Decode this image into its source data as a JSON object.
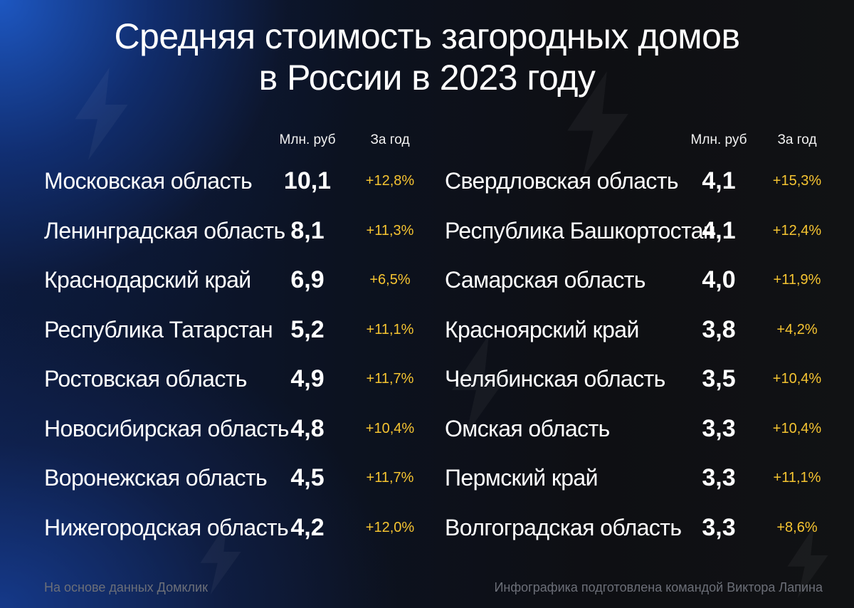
{
  "title": {
    "line1": "Средняя стоимость загородных домов",
    "line2": "в России в 2023 году"
  },
  "columns": {
    "price_header": "Млн. руб",
    "change_header": "За год"
  },
  "left_rows": [
    {
      "region": "Московская область",
      "price": "10,1",
      "change": "+12,8%"
    },
    {
      "region": "Ленинградская область",
      "price": "8,1",
      "change": "+11,3%"
    },
    {
      "region": "Краснодарский край",
      "price": "6,9",
      "change": "+6,5%"
    },
    {
      "region": "Республика Татарстан",
      "price": "5,2",
      "change": "+11,1%"
    },
    {
      "region": "Ростовская область",
      "price": "4,9",
      "change": "+11,7%"
    },
    {
      "region": "Новосибирская область",
      "price": "4,8",
      "change": "+10,4%"
    },
    {
      "region": "Воронежская область",
      "price": "4,5",
      "change": "+11,7%"
    },
    {
      "region": "Нижегородская область",
      "price": "4,2",
      "change": "+12,0%"
    }
  ],
  "right_rows": [
    {
      "region": "Свердловская область",
      "price": "4,1",
      "change": "+15,3%"
    },
    {
      "region": "Республика Башкортостан",
      "price": "4,1",
      "change": "+12,4%"
    },
    {
      "region": "Самарская область",
      "price": "4,0",
      "change": "+11,9%"
    },
    {
      "region": "Красноярский край",
      "price": "3,8",
      "change": "+4,2%"
    },
    {
      "region": "Челябинская область",
      "price": "3,5",
      "change": "+10,4%"
    },
    {
      "region": "Омская область",
      "price": "3,3",
      "change": "+10,4%"
    },
    {
      "region": "Пермский край",
      "price": "3,3",
      "change": "+11,1%"
    },
    {
      "region": "Волгоградская область",
      "price": "3,3",
      "change": "+8,6%"
    }
  ],
  "footer": {
    "source": "На основе данных Домклик",
    "credit": "Инфографика подготовлена командой Виктора Лапина"
  },
  "colors": {
    "text": "#ffffff",
    "accent_change": "#f5c431",
    "footer_text": "#6c6f78",
    "bg_blue": "#1e5ac8",
    "bg_dark": "#111214"
  },
  "icons": [
    "lightning-bolt-icon"
  ]
}
